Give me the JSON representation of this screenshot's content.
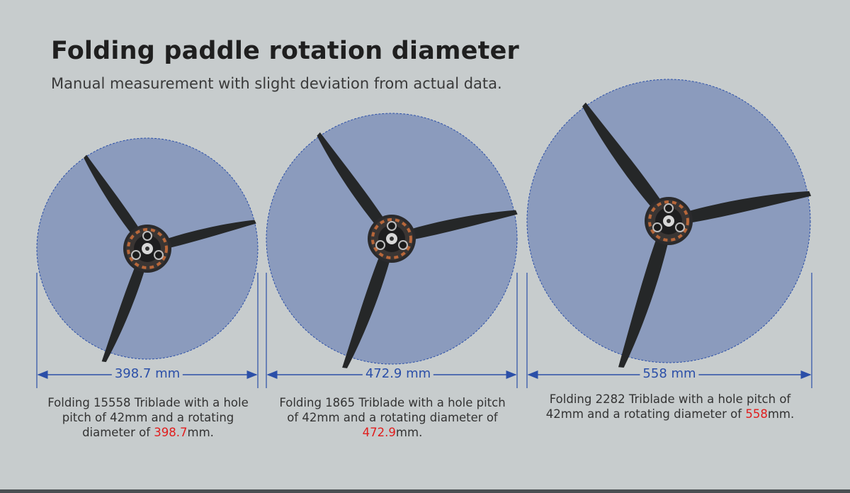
{
  "header": {
    "title": "Folding paddle rotation diameter",
    "subtitle": "Manual measurement with slight deviation from actual data."
  },
  "props": [
    {
      "dimension_label": "398.7 mm",
      "caption_prefix": "Folding 15558 Triblade with a hole pitch of 42mm and a rotating diameter of ",
      "caption_value": "398.7",
      "caption_suffix": "mm."
    },
    {
      "dimension_label": "472.9 mm",
      "caption_prefix": "Folding 1865 Triblade with a hole pitch of 42mm and a rotating diameter of ",
      "caption_value": "472.9",
      "caption_suffix": "mm."
    },
    {
      "dimension_label": "558 mm",
      "caption_prefix": "Folding 2282 Triblade with a hole pitch of 42mm and a rotating diameter of ",
      "caption_value": "558",
      "caption_suffix": "mm."
    }
  ],
  "colors": {
    "background": "#c7cccd",
    "disc_fill": "#8b9bbd",
    "dimension_line": "#2b4fa8",
    "highlight": "#e11d1d",
    "blade": "#252728"
  }
}
